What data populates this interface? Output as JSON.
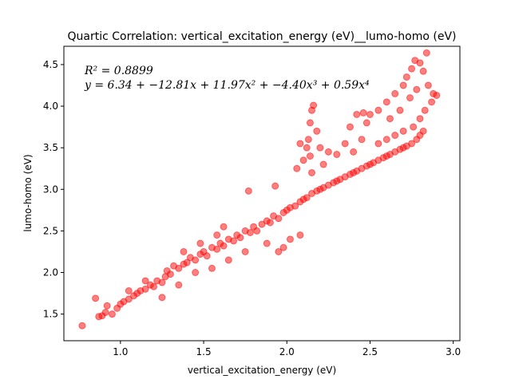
{
  "chart_data": {
    "type": "scatter",
    "title": "Quartic Correlation: vertical_excitation_energy (eV)__lumo-homo (eV)",
    "xlabel": "vertical_excitation_energy (eV)",
    "ylabel": "lumo-homo (eV)",
    "xlim": [
      0.66,
      3.04
    ],
    "ylim": [
      1.18,
      4.72
    ],
    "xticks": [
      1.0,
      1.5,
      2.0,
      2.5,
      3.0
    ],
    "yticks": [
      1.5,
      2.0,
      2.5,
      3.0,
      3.5,
      4.0,
      4.5
    ],
    "xtick_labels": [
      "1.0",
      "1.5",
      "2.0",
      "2.5",
      "3.0"
    ],
    "ytick_labels": [
      "1.5",
      "2.0",
      "2.5",
      "3.0",
      "3.5",
      "4.0",
      "4.5"
    ],
    "grid": false,
    "point_color": "#ff0000",
    "point_alpha": 0.5,
    "annotations": {
      "r2": "R² = 0.8899",
      "equation": "y = 6.34 + −12.81x + 11.97x² + −4.40x³ + 0.59x⁴"
    },
    "fit": {
      "coefficients": [
        6.34,
        -12.81,
        11.97,
        -4.4,
        0.59
      ]
    },
    "points": [
      [
        0.77,
        1.36
      ],
      [
        0.85,
        1.69
      ],
      [
        0.87,
        1.47
      ],
      [
        0.89,
        1.48
      ],
      [
        0.91,
        1.52
      ],
      [
        0.92,
        1.6
      ],
      [
        0.95,
        1.5
      ],
      [
        0.98,
        1.57
      ],
      [
        1.0,
        1.62
      ],
      [
        1.02,
        1.65
      ],
      [
        1.05,
        1.68
      ],
      [
        1.08,
        1.72
      ],
      [
        1.1,
        1.75
      ],
      [
        1.12,
        1.78
      ],
      [
        1.15,
        1.8
      ],
      [
        1.18,
        1.85
      ],
      [
        1.2,
        1.83
      ],
      [
        1.22,
        1.9
      ],
      [
        1.25,
        1.88
      ],
      [
        1.27,
        1.95
      ],
      [
        1.28,
        2.02
      ],
      [
        1.3,
        1.98
      ],
      [
        1.32,
        2.08
      ],
      [
        1.35,
        2.05
      ],
      [
        1.38,
        2.1
      ],
      [
        1.4,
        2.12
      ],
      [
        1.42,
        2.18
      ],
      [
        1.45,
        2.15
      ],
      [
        1.48,
        2.22
      ],
      [
        1.5,
        2.25
      ],
      [
        1.52,
        2.2
      ],
      [
        1.55,
        2.3
      ],
      [
        1.58,
        2.28
      ],
      [
        1.6,
        2.35
      ],
      [
        1.62,
        2.32
      ],
      [
        1.65,
        2.4
      ],
      [
        1.68,
        2.38
      ],
      [
        1.7,
        2.45
      ],
      [
        1.72,
        2.42
      ],
      [
        1.75,
        2.5
      ],
      [
        1.78,
        2.48
      ],
      [
        1.8,
        2.55
      ],
      [
        1.82,
        2.5
      ],
      [
        1.85,
        2.58
      ],
      [
        1.88,
        2.62
      ],
      [
        1.9,
        2.6
      ],
      [
        1.92,
        2.68
      ],
      [
        1.95,
        2.65
      ],
      [
        1.98,
        2.72
      ],
      [
        2.0,
        2.75
      ],
      [
        2.02,
        2.78
      ],
      [
        2.05,
        2.8
      ],
      [
        2.08,
        2.85
      ],
      [
        2.1,
        2.88
      ],
      [
        2.12,
        2.9
      ],
      [
        2.15,
        2.95
      ],
      [
        2.18,
        2.98
      ],
      [
        2.2,
        3.0
      ],
      [
        2.22,
        3.02
      ],
      [
        2.25,
        3.05
      ],
      [
        2.28,
        3.08
      ],
      [
        2.3,
        3.1
      ],
      [
        2.32,
        3.12
      ],
      [
        2.35,
        3.15
      ],
      [
        2.38,
        3.18
      ],
      [
        2.4,
        3.2
      ],
      [
        2.42,
        3.22
      ],
      [
        2.45,
        3.25
      ],
      [
        2.48,
        3.28
      ],
      [
        2.5,
        3.3
      ],
      [
        2.52,
        3.32
      ],
      [
        2.55,
        3.35
      ],
      [
        2.58,
        3.38
      ],
      [
        2.6,
        3.4
      ],
      [
        2.62,
        3.42
      ],
      [
        2.65,
        3.45
      ],
      [
        2.68,
        3.48
      ],
      [
        2.7,
        3.5
      ],
      [
        2.72,
        3.52
      ],
      [
        2.75,
        3.55
      ],
      [
        2.78,
        3.6
      ],
      [
        2.8,
        3.65
      ],
      [
        2.82,
        3.7
      ],
      [
        1.77,
        2.98
      ],
      [
        1.93,
        3.04
      ],
      [
        2.02,
        2.4
      ],
      [
        1.98,
        2.3
      ],
      [
        2.08,
        2.45
      ],
      [
        1.95,
        2.25
      ],
      [
        1.88,
        2.35
      ],
      [
        1.25,
        1.7
      ],
      [
        1.35,
        1.85
      ],
      [
        1.45,
        2.0
      ],
      [
        1.55,
        2.05
      ],
      [
        1.65,
        2.15
      ],
      [
        1.75,
        2.25
      ],
      [
        2.15,
        3.2
      ],
      [
        2.14,
        3.4
      ],
      [
        2.13,
        3.6
      ],
      [
        2.14,
        3.8
      ],
      [
        2.15,
        3.95
      ],
      [
        2.16,
        4.01
      ],
      [
        2.12,
        3.5
      ],
      [
        2.1,
        3.35
      ],
      [
        2.08,
        3.55
      ],
      [
        2.06,
        3.25
      ],
      [
        2.18,
        3.7
      ],
      [
        2.2,
        3.5
      ],
      [
        2.22,
        3.3
      ],
      [
        2.25,
        3.45
      ],
      [
        2.3,
        3.42
      ],
      [
        2.4,
        3.45
      ],
      [
        2.45,
        3.6
      ],
      [
        2.48,
        3.8
      ],
      [
        2.5,
        3.9
      ],
      [
        2.55,
        3.95
      ],
      [
        2.6,
        4.05
      ],
      [
        2.65,
        4.15
      ],
      [
        2.7,
        4.25
      ],
      [
        2.72,
        4.35
      ],
      [
        2.75,
        4.45
      ],
      [
        2.77,
        4.55
      ],
      [
        2.8,
        4.52
      ],
      [
        2.84,
        4.64
      ],
      [
        2.82,
        4.42
      ],
      [
        2.78,
        4.2
      ],
      [
        2.85,
        4.25
      ],
      [
        2.88,
        4.15
      ],
      [
        2.9,
        4.13
      ],
      [
        2.87,
        4.05
      ],
      [
        2.83,
        3.95
      ],
      [
        2.8,
        3.85
      ],
      [
        2.76,
        3.75
      ],
      [
        2.7,
        3.7
      ],
      [
        2.65,
        3.65
      ],
      [
        2.6,
        3.6
      ],
      [
        2.55,
        3.55
      ],
      [
        2.62,
        3.85
      ],
      [
        2.68,
        3.95
      ],
      [
        2.74,
        4.1
      ],
      [
        2.46,
        3.92
      ],
      [
        2.42,
        3.9
      ],
      [
        2.38,
        3.75
      ],
      [
        2.35,
        3.55
      ],
      [
        1.58,
        2.45
      ],
      [
        1.62,
        2.55
      ],
      [
        1.48,
        2.35
      ],
      [
        1.38,
        2.25
      ],
      [
        1.15,
        1.9
      ],
      [
        1.05,
        1.78
      ]
    ]
  }
}
